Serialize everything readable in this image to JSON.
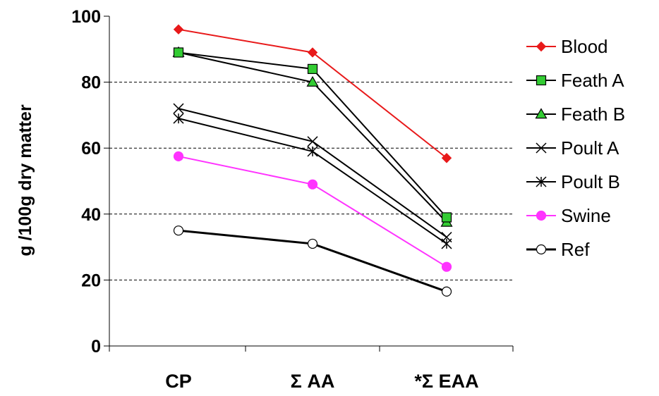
{
  "chart_data": {
    "type": "line",
    "title": "",
    "xlabel": "",
    "ylabel": "g /100g dry matter",
    "categories": [
      "CP",
      "Σ AA",
      "*Σ EAA"
    ],
    "ylim": [
      0,
      100
    ],
    "yticks": [
      0,
      20,
      40,
      60,
      80,
      100
    ],
    "grid": "horizontal dashed",
    "legend": "right",
    "series": [
      {
        "name": "Blood",
        "values": [
          96,
          89,
          57
        ],
        "color": "#e8191a",
        "marker": "diamond",
        "line_width": 2
      },
      {
        "name": "Feath A",
        "values": [
          89,
          84,
          39
        ],
        "color": "#000000",
        "marker": "square",
        "marker_fill": "#33cc33",
        "line_width": 2
      },
      {
        "name": "Feath B",
        "values": [
          89,
          80,
          37.5
        ],
        "color": "#000000",
        "marker": "triangle",
        "marker_fill": "#33cc33",
        "line_width": 2
      },
      {
        "name": "Poult A",
        "values": [
          72,
          62,
          33
        ],
        "color": "#000000",
        "marker": "x",
        "line_width": 2
      },
      {
        "name": "Poult B",
        "values": [
          69,
          59,
          31
        ],
        "color": "#000000",
        "marker": "star",
        "line_width": 2
      },
      {
        "name": "Swine",
        "values": [
          57.5,
          49,
          24
        ],
        "color": "#ff33ff",
        "marker": "circle",
        "marker_fill": "#ff33ff",
        "line_width": 2
      },
      {
        "name": "Ref",
        "values": [
          35,
          31,
          16.5
        ],
        "color": "#000000",
        "marker": "circle",
        "marker_fill": "#ffffff",
        "line_width": 3
      }
    ]
  }
}
